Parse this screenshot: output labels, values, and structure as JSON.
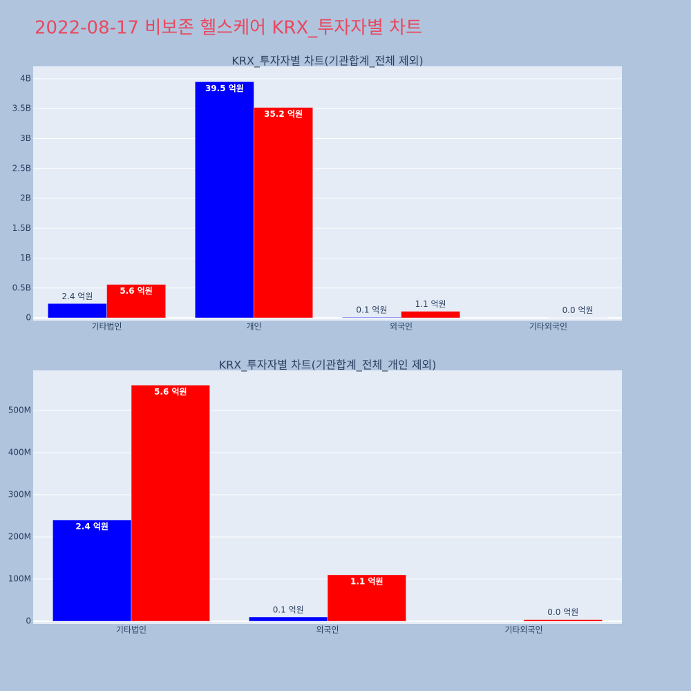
{
  "title": "2022-08-17 비보존 헬스케어 KRX_투자자별 차트",
  "chart_data": [
    {
      "type": "bar",
      "title": "KRX_투자자별 차트(기관합계_전체 제외)",
      "categories": [
        "기타법인",
        "개인",
        "외국인",
        "기타외국인"
      ],
      "series": [
        {
          "color": "#0000ff",
          "values": [
            240000000,
            3950000000,
            10000000,
            null
          ],
          "value_labels": [
            "2.4 억원",
            "39.5 억원",
            "0.1 억원",
            null
          ]
        },
        {
          "color": "#ff0000",
          "values": [
            560000000,
            3520000000,
            110000000,
            4000000
          ],
          "value_labels": [
            "5.6 억원",
            "35.2 억원",
            "1.1 억원",
            "0.0 억원"
          ]
        }
      ],
      "ylim": [
        -46000000,
        4208000000
      ],
      "yticks": [
        0,
        {
          "value": 500000000,
          "label": "0.5B"
        },
        {
          "value": 1000000000,
          "label": "1B"
        },
        {
          "value": 1500000000,
          "label": "1.5B"
        },
        {
          "value": 2000000000,
          "label": "2B"
        },
        {
          "value": 2500000000,
          "label": "2.5B"
        },
        {
          "value": 3000000000,
          "label": "3B"
        },
        {
          "value": 3500000000,
          "label": "3.5B"
        },
        {
          "value": 4000000000,
          "label": "4B"
        }
      ],
      "grid": true
    },
    {
      "type": "bar",
      "title": "KRX_투자자별 차트(기관합계_전체_개인 제외)",
      "categories": [
        "기타법인",
        "외국인",
        "기타외국인"
      ],
      "series": [
        {
          "color": "#0000ff",
          "values": [
            240000000,
            10000000,
            null
          ],
          "value_labels": [
            "2.4 억원",
            "0.1 억원",
            null
          ]
        },
        {
          "color": "#ff0000",
          "values": [
            560000000,
            110000000,
            4000000
          ],
          "value_labels": [
            "5.6 억원",
            "1.1 억원",
            "0.0 억원"
          ]
        }
      ],
      "ylim": [
        -6500000,
        595000000
      ],
      "yticks": [
        0,
        {
          "value": 100000000,
          "label": "100M"
        },
        {
          "value": 200000000,
          "label": "200M"
        },
        {
          "value": 300000000,
          "label": "300M"
        },
        {
          "value": 400000000,
          "label": "400M"
        },
        {
          "value": 500000000,
          "label": "500M"
        }
      ],
      "grid": true
    }
  ]
}
